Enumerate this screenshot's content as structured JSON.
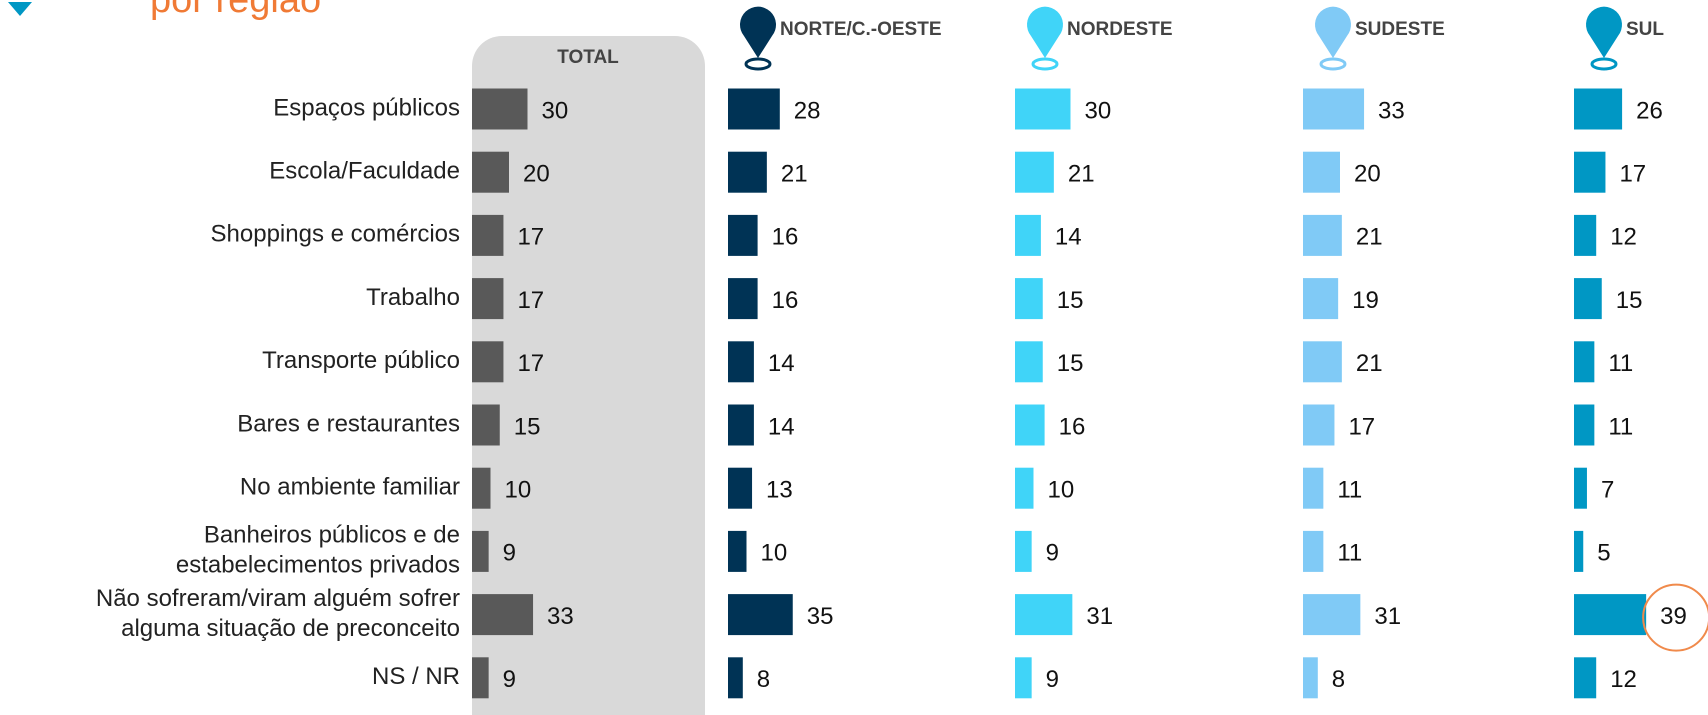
{
  "chart_data": {
    "type": "bar",
    "orientation": "horizontal",
    "title": "por região",
    "categories": [
      [
        "Espaços públicos"
      ],
      [
        "Escola/Faculdade"
      ],
      [
        "Shoppings e comércios"
      ],
      [
        "Trabalho"
      ],
      [
        "Transporte público"
      ],
      [
        "Bares e restaurantes"
      ],
      [
        "No ambiente familiar"
      ],
      [
        "Banheiros públicos e de",
        "estabelecimentos privados"
      ],
      [
        "Não sofreram/viram alguém sofrer",
        "alguma situação de preconceito"
      ],
      [
        "NS / NR"
      ]
    ],
    "xlim": [
      0,
      40
    ],
    "series": [
      {
        "name": "TOTAL",
        "color": "#595959",
        "values": [
          30,
          20,
          17,
          17,
          17,
          15,
          10,
          9,
          33,
          9
        ]
      },
      {
        "name": "NORTE/C.-OESTE",
        "color": "#003355",
        "values": [
          28,
          21,
          16,
          16,
          14,
          14,
          13,
          10,
          35,
          8
        ]
      },
      {
        "name": "NORDESTE",
        "color": "#40d4f8",
        "values": [
          30,
          21,
          14,
          15,
          15,
          16,
          10,
          9,
          31,
          9
        ]
      },
      {
        "name": "SUDESTE",
        "color": "#80caf6",
        "values": [
          33,
          20,
          21,
          19,
          21,
          17,
          11,
          11,
          31,
          8
        ]
      },
      {
        "name": "SUL",
        "color": "#0097c4",
        "values": [
          26,
          17,
          12,
          15,
          11,
          11,
          7,
          5,
          39,
          12
        ]
      }
    ],
    "highlight": {
      "series": 4,
      "index": 8,
      "color": "#f08a4b"
    }
  }
}
